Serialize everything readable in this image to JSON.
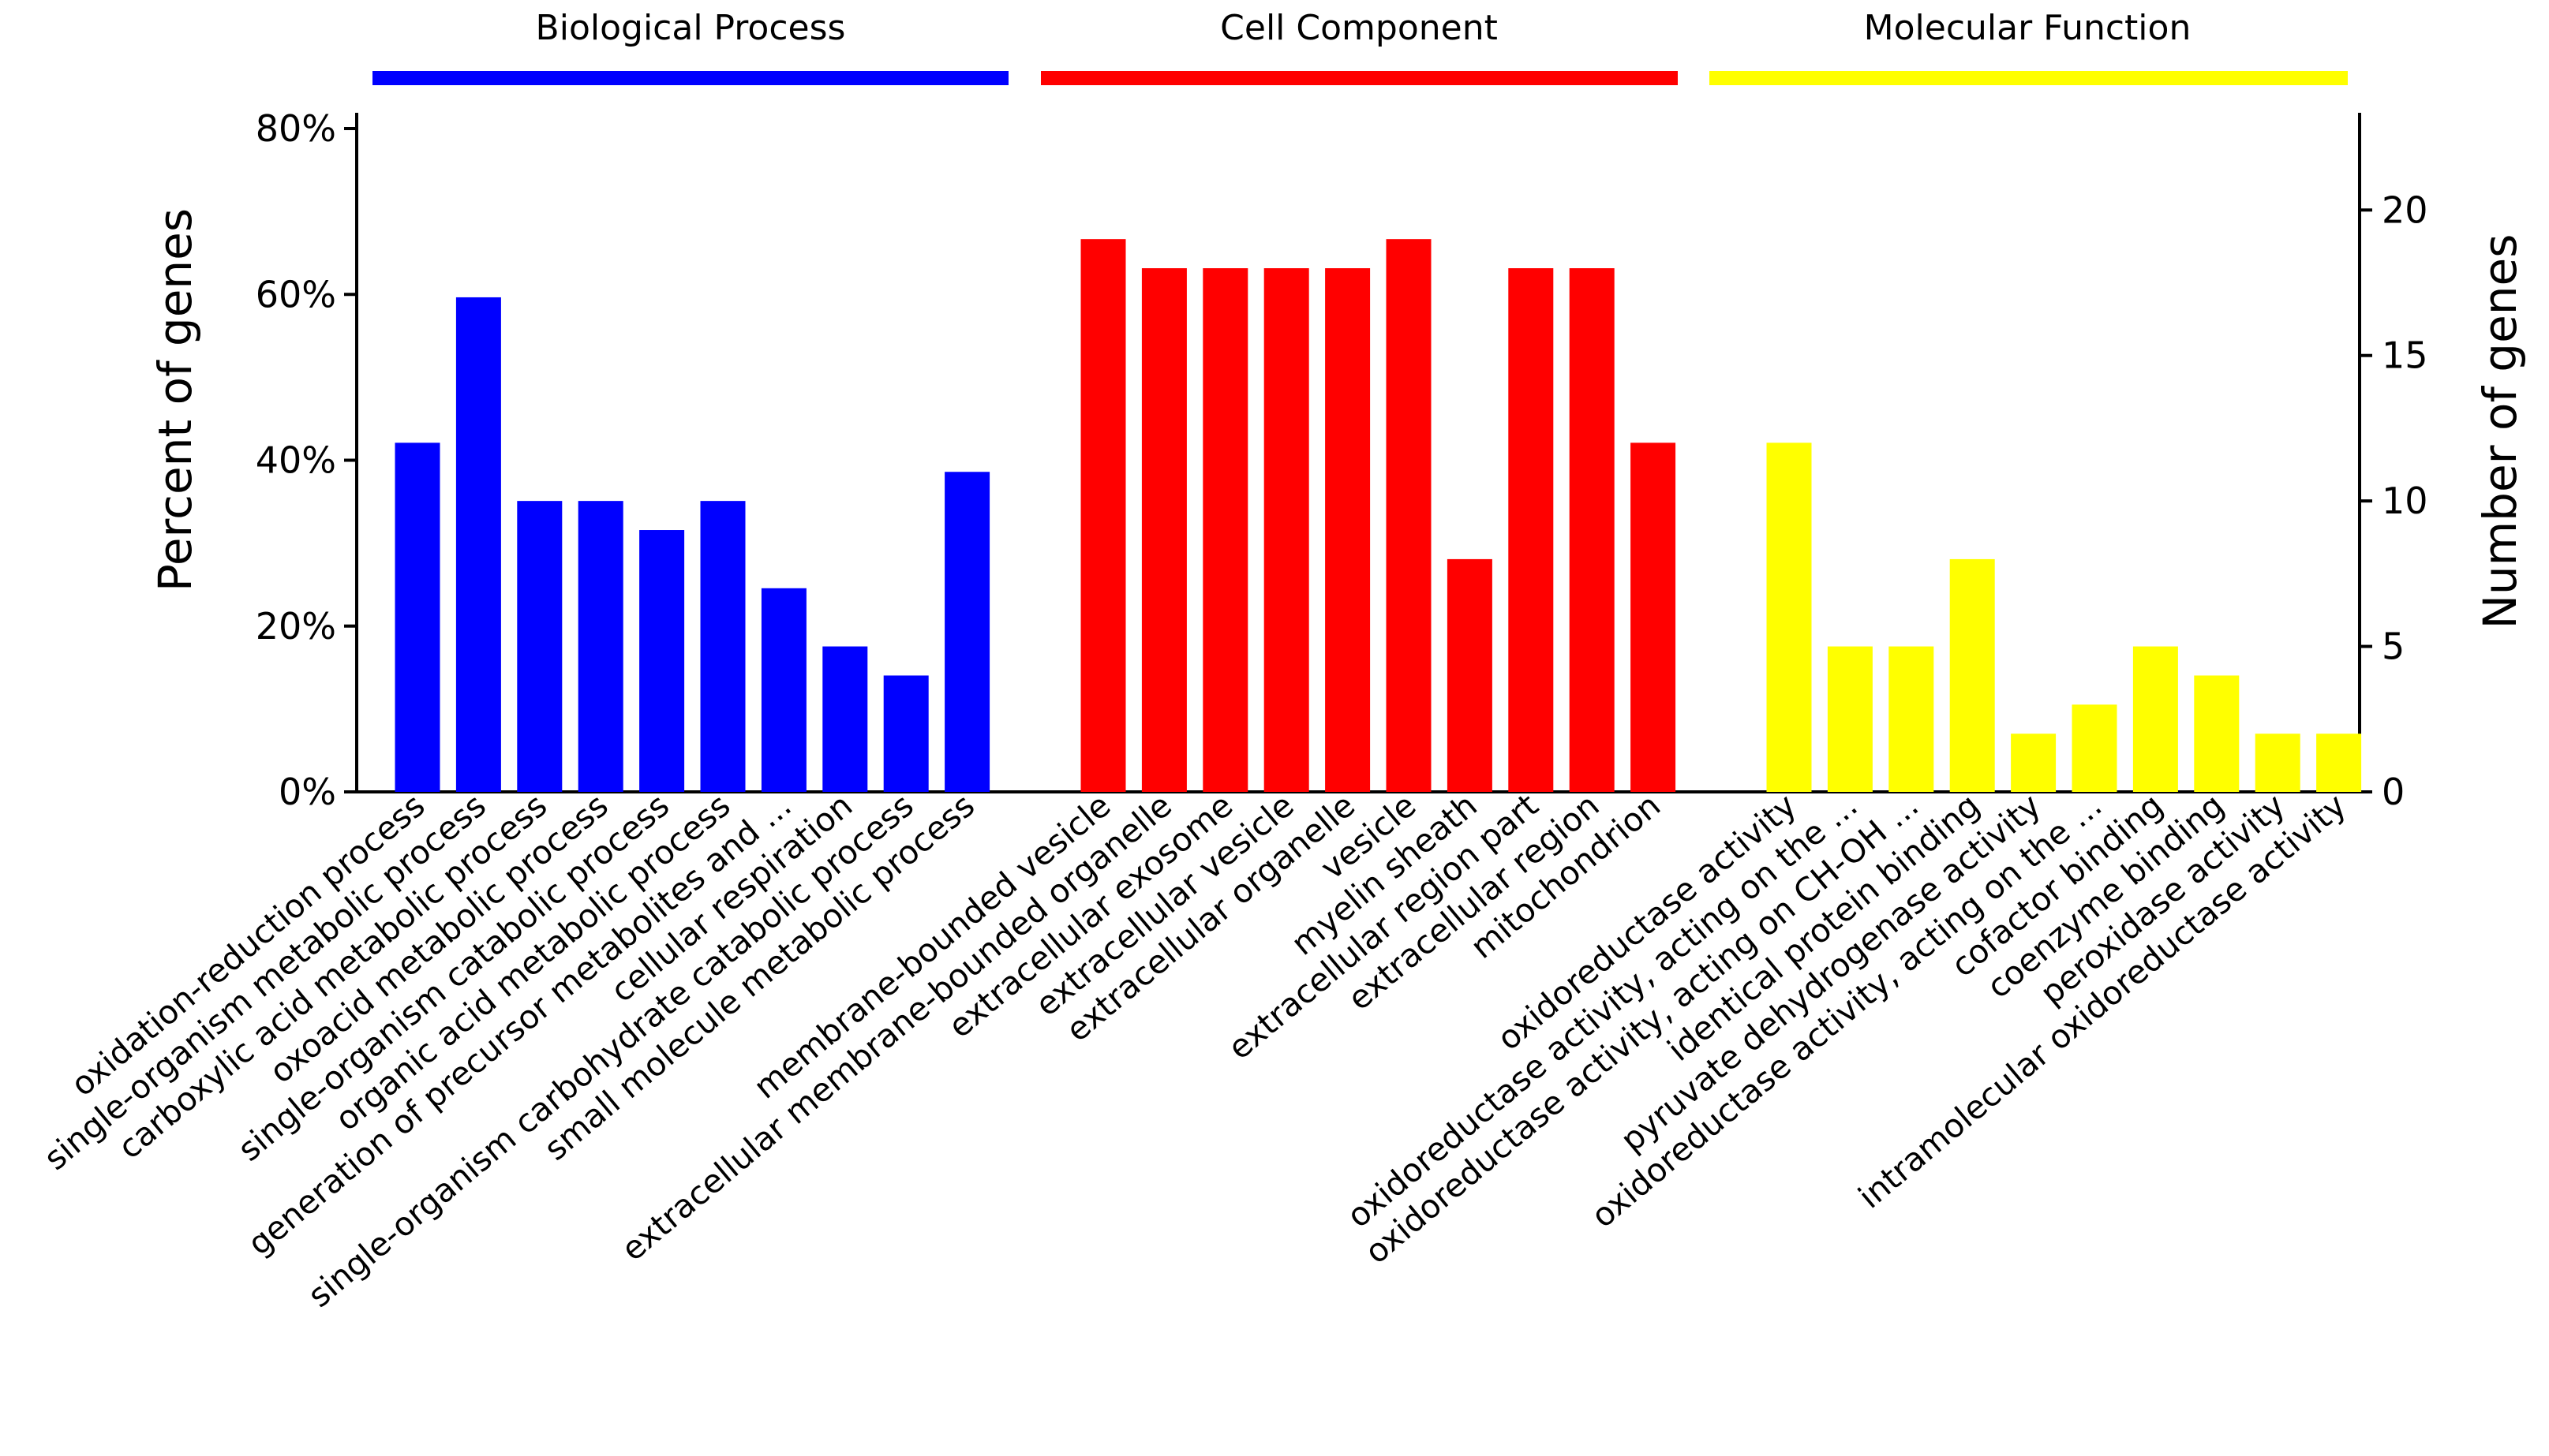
{
  "chart_data": {
    "type": "bar",
    "left_axis": {
      "title": "Percent of genes",
      "unit": "percent",
      "ylim": [
        0,
        80
      ],
      "ticks": [
        0,
        20,
        40,
        60,
        80
      ],
      "tick_labels": [
        "0%",
        "20%",
        "40%",
        "60%",
        "80%"
      ]
    },
    "right_axis": {
      "title": "Number of genes",
      "unit": "count",
      "ylim": [
        0,
        22.8
      ],
      "ticks": [
        0,
        5,
        10,
        15,
        20
      ],
      "tick_labels": [
        "0",
        "5",
        "10",
        "15",
        "20"
      ]
    },
    "grid": false,
    "groups": [
      {
        "name": "Biological Process",
        "color": "#0000ff",
        "categories": [
          "oxidation-reduction process",
          "single-organism metabolic process",
          "carboxylic acid metabolic process",
          "oxoacid metabolic process",
          "single-organism catabolic process",
          "organic acid metabolic process",
          "generation of precursor metabolites and ...",
          "cellular respiration",
          "single-organism carbohydrate catabolic process",
          "small molecule metabolic process"
        ],
        "values": [
          12,
          17,
          10,
          10,
          9,
          10,
          7,
          5,
          4,
          11
        ]
      },
      {
        "name": "Cell Component",
        "color": "#ff0000",
        "categories": [
          "membrane-bounded vesicle",
          "extracellular membrane-bounded organelle",
          "extracellular exosome",
          "extracellular vesicle",
          "extracellular organelle",
          "vesicle",
          "myelin sheath",
          "extracellular region part",
          "extracellular region",
          "mitochondrion"
        ],
        "values": [
          19,
          18,
          18,
          18,
          18,
          19,
          8,
          18,
          18,
          12
        ]
      },
      {
        "name": "Molecular Function",
        "color": "#ffff00",
        "categories": [
          "oxidoreductase activity",
          "oxidoreductase activity, acting on the ...",
          "oxidoreductase activity, acting on CH-OH ...",
          "identical protein binding",
          "pyruvate dehydrogenase activity",
          "oxidoreductase activity, acting on the ...",
          "cofactor binding",
          "coenzyme binding",
          "peroxidase activity",
          "intramolecular oxidoreductase activity"
        ],
        "values": [
          12,
          5,
          5,
          8,
          2,
          3,
          5,
          4,
          2,
          2
        ]
      }
    ]
  }
}
